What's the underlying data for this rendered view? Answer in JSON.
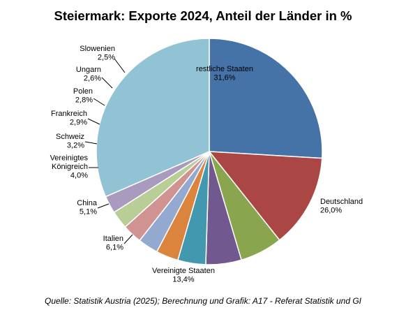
{
  "chart_data": {
    "type": "pie",
    "title": "Steiermark: Exporte 2024, Anteil der Länder in %",
    "slices": [
      {
        "label": "Deutschland",
        "value": 26.0,
        "display": "26,0%",
        "color": "#4572a7"
      },
      {
        "label": "Vereinigte Staaten",
        "value": 13.4,
        "display": "13,4%",
        "color": "#aa4643"
      },
      {
        "label": "Italien",
        "value": 6.1,
        "display": "6,1%",
        "color": "#89a54e"
      },
      {
        "label": "China",
        "value": 5.1,
        "display": "5,1%",
        "color": "#71588f"
      },
      {
        "label": "Vereinigtes Königreich",
        "label_lines": [
          "Vereinigtes",
          "Königreich"
        ],
        "value": 4.0,
        "display": "4,0%",
        "color": "#4198af"
      },
      {
        "label": "Schweiz",
        "value": 3.2,
        "display": "3,2%",
        "color": "#db843d"
      },
      {
        "label": "Frankreich",
        "value": 2.9,
        "display": "2,9%",
        "color": "#93a9cf"
      },
      {
        "label": "Polen",
        "value": 2.8,
        "display": "2,8%",
        "color": "#d19392"
      },
      {
        "label": "Ungarn",
        "value": 2.6,
        "display": "2,6%",
        "color": "#b9cd96"
      },
      {
        "label": "Slowenien",
        "value": 2.5,
        "display": "2,5%",
        "color": "#a99bbd"
      },
      {
        "label": "restliche Staaten",
        "value": 31.6,
        "display": "31,6%",
        "color": "#92c3d4"
      }
    ],
    "start_angle_deg": 90,
    "direction": "clockwise",
    "legend": "none"
  },
  "source": "Quelle: Statistik Austria (2025); Berechnung und Grafik: A17 - Referat  Statistik und GI"
}
